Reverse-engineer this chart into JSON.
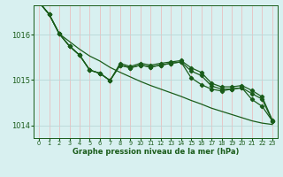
{
  "background_color": "#d8f0f0",
  "grid_color_h": "#b8d8d8",
  "grid_color_v": "#e8c0c0",
  "line_color": "#1a5c1a",
  "xlabel": "Graphe pression niveau de la mer (hPa)",
  "xlim": [
    -0.5,
    23.5
  ],
  "ylim": [
    1013.72,
    1016.65
  ],
  "yticks": [
    1014,
    1015,
    1016
  ],
  "s1": [
    1016.72,
    1016.45,
    1016.02,
    1015.85,
    1015.68,
    1015.53,
    1015.42,
    1015.28,
    1015.17,
    1015.07,
    1014.97,
    1014.88,
    1014.8,
    1014.72,
    1014.64,
    1014.55,
    1014.47,
    1014.38,
    1014.31,
    1014.24,
    1014.17,
    1014.1,
    1014.05,
    1014.02
  ],
  "s2": [
    1016.72,
    1016.45,
    1016.02,
    1015.75,
    1015.55,
    1015.22,
    1015.15,
    1014.99,
    1015.37,
    1015.3,
    1015.37,
    1015.33,
    1015.37,
    1015.4,
    1015.43,
    1015.27,
    1015.17,
    1014.93,
    1014.85,
    1014.85,
    1014.88,
    1014.77,
    1014.63,
    1014.12
  ],
  "s3": [
    1016.72,
    1016.45,
    1016.02,
    1015.75,
    1015.55,
    1015.22,
    1015.15,
    1014.99,
    1015.33,
    1015.27,
    1015.33,
    1015.29,
    1015.33,
    1015.37,
    1015.4,
    1015.2,
    1015.1,
    1014.87,
    1014.8,
    1014.8,
    1014.83,
    1014.7,
    1014.58,
    1014.1
  ],
  "s4": [
    1016.72,
    1016.45,
    1016.02,
    1015.75,
    1015.55,
    1015.22,
    1015.15,
    1014.99,
    1015.33,
    1015.27,
    1015.33,
    1015.29,
    1015.33,
    1015.37,
    1015.4,
    1015.05,
    1014.9,
    1014.8,
    1014.76,
    1014.8,
    1014.83,
    1014.57,
    1014.42,
    1014.1
  ]
}
